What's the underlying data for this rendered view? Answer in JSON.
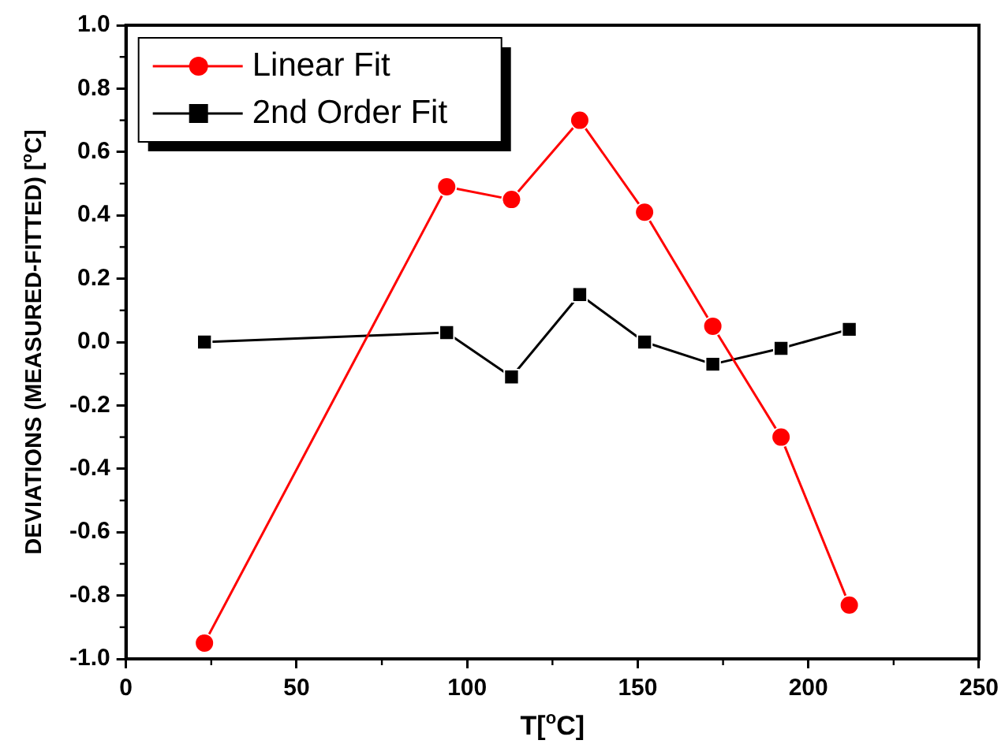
{
  "chart_data": {
    "type": "line",
    "xlabel": "T[$^{o}$C]",
    "ylabel": "DEVIATIONS (MEASURED-FITTED) [$^{o}$C]",
    "x": [
      23,
      94,
      113,
      133,
      152,
      172,
      192,
      212
    ],
    "series": [
      {
        "name": "Linear Fit",
        "color": "#ff0000",
        "marker": "circle",
        "values": [
          -0.95,
          0.49,
          0.45,
          0.7,
          0.41,
          0.05,
          -0.3,
          -0.83
        ]
      },
      {
        "name": "2nd Order Fit",
        "color": "#000000",
        "marker": "square",
        "values": [
          0.0,
          0.03,
          -0.11,
          0.15,
          0.0,
          -0.07,
          -0.02,
          0.04
        ]
      }
    ],
    "xlim": [
      0,
      250
    ],
    "xticks": [
      0,
      50,
      100,
      150,
      200,
      250
    ],
    "ylim": [
      -1.0,
      1.0
    ],
    "yticks": [
      {
        "value": -1.0,
        "label": "-1.0"
      },
      {
        "value": -0.8,
        "label": "-0.8"
      },
      {
        "value": -0.6,
        "label": "-0.6"
      },
      {
        "value": -0.4,
        "label": "-0.4"
      },
      {
        "value": -0.2,
        "label": "-0.2"
      },
      {
        "value": 0,
        "label": "0.0"
      },
      {
        "value": 0.2,
        "label": "0.2"
      },
      {
        "value": 0.4,
        "label": "0.4"
      },
      {
        "value": 0.6,
        "label": "0.6"
      },
      {
        "value": 0.8,
        "label": "0.8"
      },
      {
        "value": 1.0,
        "label": "1.0"
      }
    ],
    "grid": false,
    "legend": "top left",
    "line_style": "solid"
  }
}
